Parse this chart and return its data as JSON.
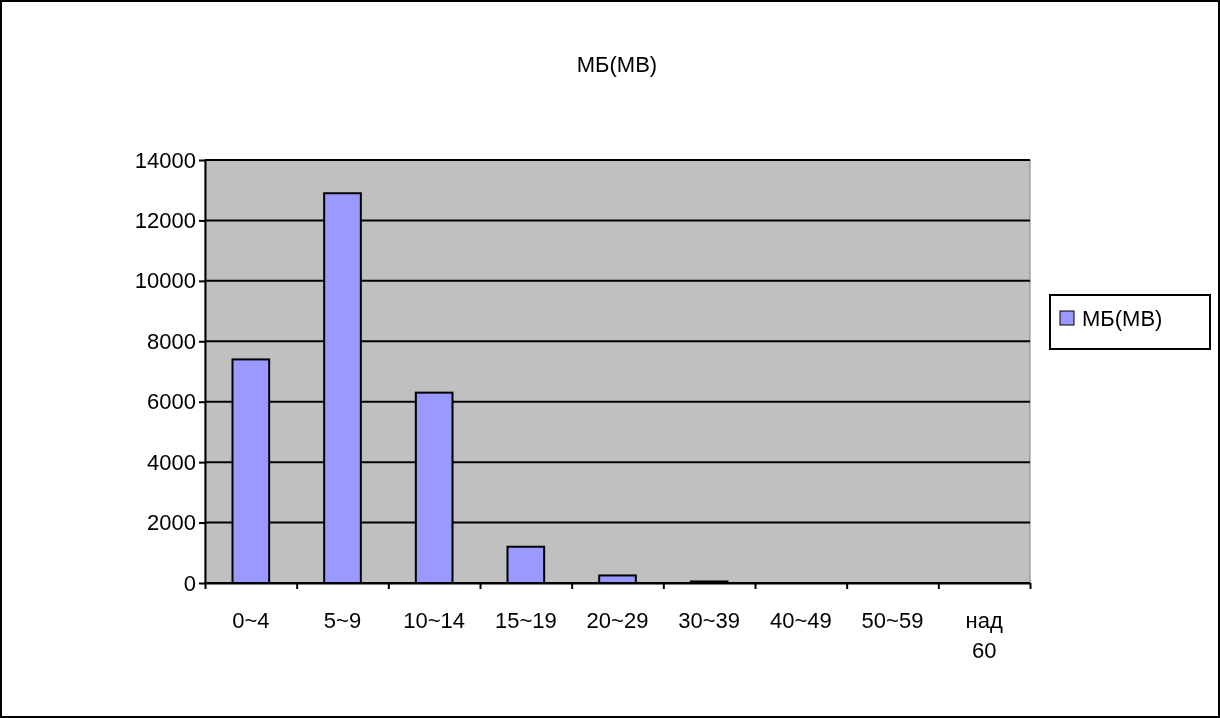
{
  "chart_data": {
    "type": "bar",
    "title": "МБ(МВ)",
    "categories": [
      "0~4",
      "5~9",
      "10~14",
      "15~19",
      "20~29",
      "30~39",
      "40~49",
      "50~59",
      "над 60"
    ],
    "series": [
      {
        "name": "МБ(МВ)",
        "color": "#9999ff",
        "values": [
          7400,
          12900,
          6300,
          1200,
          250,
          50,
          0,
          0,
          0
        ]
      }
    ],
    "ylim": [
      0,
      14000
    ],
    "yticks": [
      0,
      2000,
      4000,
      6000,
      8000,
      10000,
      12000,
      14000
    ],
    "grid": "y",
    "legend": "right"
  }
}
